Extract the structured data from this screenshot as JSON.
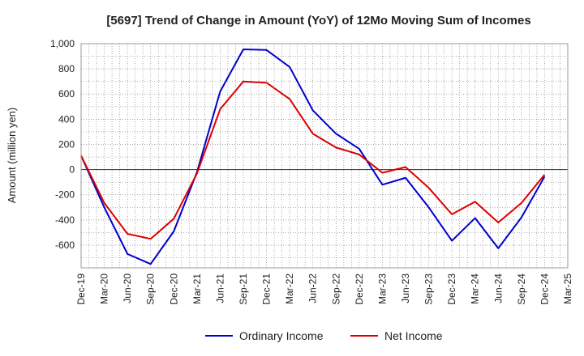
{
  "chart_data": {
    "type": "line",
    "title": "[5697]  Trend of Change in Amount (YoY) of 12Mo Moving Sum of Incomes",
    "xlabel": "",
    "ylabel": "Amount (million yen)",
    "ylim": [
      -780,
      1000
    ],
    "yticks": [
      1000,
      800,
      600,
      400,
      200,
      0,
      -200,
      -400,
      -600
    ],
    "ytick_labels": [
      "1,000",
      "800",
      "600",
      "400",
      "200",
      "0",
      "-200",
      "-400",
      "-600"
    ],
    "x": [
      "Dec-19",
      "Mar-20",
      "Jun-20",
      "Sep-20",
      "Dec-20",
      "Mar-21",
      "Jun-21",
      "Sep-21",
      "Dec-21",
      "Mar-22",
      "Jun-22",
      "Sep-22",
      "Dec-22",
      "Mar-23",
      "Jun-23",
      "Sep-23",
      "Dec-23",
      "Mar-24",
      "Jun-24",
      "Sep-24",
      "Dec-24",
      "Mar-25"
    ],
    "grid": true,
    "legend_position": "bottom",
    "series": [
      {
        "name": "Ordinary Income",
        "color": "#0000cc",
        "values": [
          110,
          -300,
          -670,
          -750,
          -490,
          -20,
          620,
          955,
          950,
          815,
          470,
          285,
          165,
          -120,
          -65,
          -300,
          -565,
          -385,
          -625,
          -380,
          -55,
          null
        ]
      },
      {
        "name": "Net Income",
        "color": "#dd0000",
        "values": [
          110,
          -265,
          -510,
          -550,
          -390,
          -30,
          480,
          700,
          690,
          560,
          285,
          175,
          120,
          -25,
          20,
          -145,
          -355,
          -255,
          -420,
          -265,
          -40,
          null
        ]
      }
    ]
  }
}
